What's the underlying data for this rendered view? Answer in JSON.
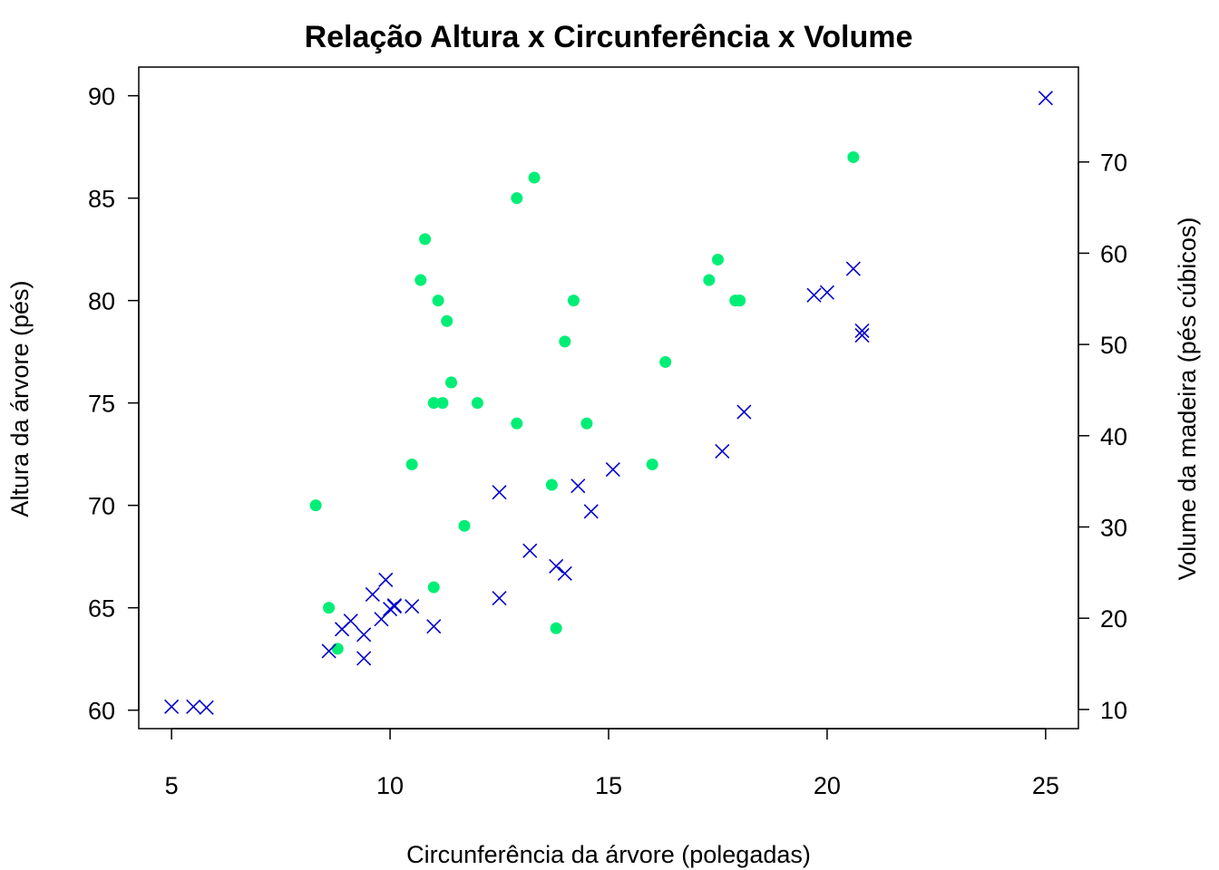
{
  "chart_data": {
    "type": "scatter",
    "title": "Relação Altura x Circunferência x Volume",
    "xlabel": "Circunferência da árvore (polegadas)",
    "ylabel_left": "Altura da árvore (pés)",
    "ylabel_right": "Volume da madeira (pés cúbicos)",
    "xlim": [
      4.25,
      25.75
    ],
    "ylim_left": [
      59.1,
      91.4
    ],
    "ylim_right": [
      7.9,
      80.4
    ],
    "x_ticks": [
      5,
      10,
      15,
      20,
      25
    ],
    "y_left_ticks": [
      60,
      65,
      70,
      75,
      80,
      85,
      90
    ],
    "y_right_ticks": [
      10,
      20,
      30,
      40,
      50,
      60,
      70
    ],
    "grid": false,
    "series": [
      {
        "axis": "left",
        "marker": "filled-circle",
        "color": "#00EE76",
        "points": [
          [
            8.3,
            70
          ],
          [
            8.6,
            65
          ],
          [
            8.8,
            63
          ],
          [
            10.5,
            72
          ],
          [
            10.7,
            81
          ],
          [
            10.8,
            83
          ],
          [
            11.0,
            66
          ],
          [
            11.0,
            75
          ],
          [
            11.1,
            80
          ],
          [
            11.2,
            75
          ],
          [
            11.3,
            79
          ],
          [
            11.4,
            76
          ],
          [
            11.4,
            76
          ],
          [
            11.7,
            69
          ],
          [
            12.0,
            75
          ],
          [
            12.9,
            74
          ],
          [
            12.9,
            85
          ],
          [
            13.3,
            86
          ],
          [
            13.7,
            71
          ],
          [
            13.8,
            64
          ],
          [
            14.0,
            78
          ],
          [
            14.2,
            80
          ],
          [
            14.5,
            74
          ],
          [
            16.0,
            72
          ],
          [
            16.3,
            77
          ],
          [
            17.3,
            81
          ],
          [
            17.5,
            82
          ],
          [
            17.9,
            80
          ],
          [
            18.0,
            80
          ],
          [
            18.0,
            80
          ],
          [
            20.6,
            87
          ]
        ]
      },
      {
        "axis": "right",
        "marker": "x",
        "color": "#0000CD",
        "points": [
          [
            5.0,
            10.3
          ],
          [
            5.5,
            10.3
          ],
          [
            5.8,
            10.2
          ],
          [
            8.6,
            16.4
          ],
          [
            8.9,
            18.8
          ],
          [
            9.1,
            19.7
          ],
          [
            9.4,
            15.6
          ],
          [
            9.4,
            18.2
          ],
          [
            9.6,
            22.6
          ],
          [
            9.8,
            19.9
          ],
          [
            9.9,
            24.2
          ],
          [
            10.0,
            21.0
          ],
          [
            10.1,
            21.4
          ],
          [
            10.1,
            21.3
          ],
          [
            10.5,
            21.3
          ],
          [
            11.0,
            19.1
          ],
          [
            12.5,
            22.2
          ],
          [
            12.5,
            33.8
          ],
          [
            13.2,
            27.4
          ],
          [
            13.8,
            25.7
          ],
          [
            14.0,
            24.9
          ],
          [
            14.3,
            34.5
          ],
          [
            14.6,
            31.7
          ],
          [
            15.1,
            36.3
          ],
          [
            17.6,
            38.3
          ],
          [
            18.1,
            42.6
          ],
          [
            19.7,
            55.4
          ],
          [
            20.0,
            55.7
          ],
          [
            20.6,
            58.3
          ],
          [
            20.8,
            51.5
          ],
          [
            20.8,
            51.0
          ],
          [
            25.0,
            77.0
          ]
        ]
      }
    ]
  }
}
